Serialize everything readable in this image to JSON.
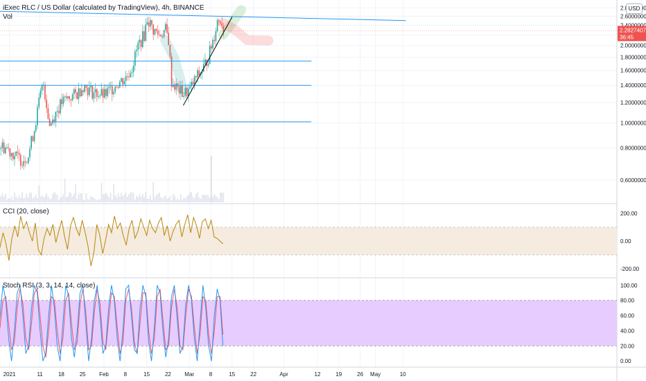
{
  "header": {
    "title": "iExec RLC / US Dollar (calculated by TradingView), 4h, BINANCE",
    "vol_label": "Vol",
    "currency": "USD"
  },
  "price_tag": {
    "value": "2.28274075",
    "countdown": "36:45",
    "color": "#ef5350"
  },
  "colors": {
    "up": "#26a69a",
    "down": "#ef5350",
    "blue_line": "#2196f3",
    "cci_line": "#b8860b",
    "cci_band": "#f5ecdf",
    "stoch_k": "#2196f3",
    "stoch_d": "#f7525f",
    "stoch_band": "#e6ccff"
  },
  "chart_data": [
    {
      "type": "candlestick",
      "title": "iExec RLC / US Dollar (calculated by TradingView), 4h, BINANCE",
      "y_scale": "log",
      "ylim": [
        0.52,
        2.86
      ],
      "y_ticks": [
        "2.80000000",
        "2.60000000",
        "2.40000000",
        "2.20000000",
        "2.00000000",
        "1.80000000",
        "1.60000000",
        "1.40000000",
        "1.20000000",
        "1.00000000",
        "0.80000000",
        "0.60000000"
      ],
      "x_ticks": [
        "2021",
        "11",
        "18",
        "25",
        "Feb",
        "8",
        "15",
        "22",
        "Mar",
        "8",
        "15",
        "22",
        "Apr",
        "12",
        "19",
        "26",
        "May",
        "10"
      ],
      "close_path": [
        [
          "2020-12-28",
          0.82
        ],
        [
          "2020-12-31",
          0.8
        ],
        [
          "2021-01-03",
          0.74
        ],
        [
          "2021-01-05",
          0.72
        ],
        [
          "2021-01-07",
          0.75
        ],
        [
          "2021-01-09",
          0.95
        ],
        [
          "2021-01-11",
          1.3
        ],
        [
          "2021-01-12",
          1.42
        ],
        [
          "2021-01-14",
          0.98
        ],
        [
          "2021-01-16",
          1.1
        ],
        [
          "2021-01-18",
          1.2
        ],
        [
          "2021-01-20",
          1.25
        ],
        [
          "2021-01-23",
          1.3
        ],
        [
          "2021-01-25",
          1.4
        ],
        [
          "2021-01-28",
          1.32
        ],
        [
          "2021-02-01",
          1.28
        ],
        [
          "2021-02-03",
          1.35
        ],
        [
          "2021-02-05",
          1.42
        ],
        [
          "2021-02-08",
          1.5
        ],
        [
          "2021-02-10",
          1.65
        ],
        [
          "2021-02-12",
          2.0
        ],
        [
          "2021-02-14",
          2.2
        ],
        [
          "2021-02-15",
          2.55
        ],
        [
          "2021-02-17",
          2.3
        ],
        [
          "2021-02-19",
          2.2
        ],
        [
          "2021-02-21",
          2.3
        ],
        [
          "2021-02-22",
          2.1
        ],
        [
          "2021-02-23",
          1.45
        ],
        [
          "2021-02-25",
          1.35
        ],
        [
          "2021-02-27",
          1.3
        ],
        [
          "2021-03-01",
          1.35
        ],
        [
          "2021-03-03",
          1.5
        ],
        [
          "2021-03-05",
          1.6
        ],
        [
          "2021-03-07",
          1.8
        ],
        [
          "2021-03-09",
          2.2
        ],
        [
          "2021-03-10",
          2.5
        ],
        [
          "2021-03-11",
          2.55
        ],
        [
          "2021-03-12",
          2.35
        ]
      ],
      "volume_spikes": [
        "2021-03-08"
      ],
      "drawings": {
        "resistance_line": [
          [
            "2020-12-28",
            2.72
          ],
          [
            "2021-05-11",
            2.5
          ]
        ],
        "trend_line": [
          [
            "2021-02-27",
            1.17
          ],
          [
            "2021-03-15",
            2.58
          ]
        ],
        "horizontal_lines": [
          {
            "value": 1.74,
            "from": "2020-12-28",
            "to": "2021-04-10"
          },
          {
            "value": 1.4,
            "from": "2020-12-28",
            "to": "2021-04-10"
          },
          {
            "value": 1.01,
            "from": "2020-12-28",
            "to": "2021-04-10"
          }
        ],
        "current_price_line": 2.2827,
        "green_arrow": [
          [
            "2021-03-12",
            2.2
          ],
          [
            "2021-03-15",
            2.45
          ],
          [
            "2021-03-18",
            2.75
          ]
        ],
        "red_arrow": [
          [
            "2021-03-12",
            2.45
          ],
          [
            "2021-03-16",
            2.3
          ],
          [
            "2021-03-20",
            2.1
          ],
          [
            "2021-03-27",
            2.09
          ]
        ],
        "green_projection_up": [
          [
            "2021-02-21",
            2.1
          ],
          [
            "2021-02-24",
            1.8
          ],
          [
            "2021-02-27",
            1.35
          ]
        ]
      }
    },
    {
      "type": "line",
      "title": "CCI (20, close)",
      "ylim": [
        -260,
        260
      ],
      "y_ticks": [
        "200.00",
        "0.00",
        "-200.00"
      ],
      "band": [
        -100,
        100
      ],
      "series": [
        {
          "name": "CCI (20, close)",
          "values": [
            -120,
            -40,
            60,
            -20,
            -140,
            20,
            110,
            30,
            180,
            90,
            140,
            60,
            0,
            130,
            -60,
            -100,
            20,
            90,
            40,
            120,
            -10,
            70,
            150,
            30,
            -60,
            110,
            170,
            90,
            40,
            150,
            60,
            -40,
            -180,
            -80,
            120,
            40,
            -90,
            10,
            120,
            60,
            180,
            90,
            130,
            40,
            -30,
            90,
            150,
            20,
            70,
            160,
            100,
            40,
            150,
            90,
            60,
            130,
            170,
            40,
            110,
            0,
            70,
            120,
            150,
            30,
            120,
            190,
            60,
            170,
            110,
            20,
            140,
            160,
            90,
            150,
            30,
            20,
            0,
            -20
          ]
        }
      ]
    },
    {
      "type": "line",
      "title": "Stoch RSI (3, 3, 14, 14, close)",
      "ylim": [
        -8,
        108
      ],
      "y_ticks": [
        "100.00",
        "80.00",
        "60.00",
        "40.00",
        "20.00",
        "0.00"
      ],
      "band": [
        20,
        80
      ],
      "series": [
        {
          "name": "K",
          "values": [
            20,
            60,
            100,
            80,
            30,
            0,
            40,
            90,
            100,
            60,
            10,
            20,
            70,
            100,
            90,
            40,
            0,
            10,
            60,
            100,
            70,
            20,
            0,
            50,
            100,
            85,
            30,
            5,
            40,
            90,
            100,
            50,
            0,
            30,
            80,
            100,
            60,
            10,
            20,
            70,
            100,
            80,
            30,
            0,
            40,
            95,
            100,
            60,
            15,
            10,
            70,
            100,
            85,
            25,
            0,
            45,
            100,
            90,
            40,
            5,
            30,
            85,
            100,
            55,
            10,
            20,
            75,
            100,
            80,
            30,
            0,
            50,
            100,
            70,
            20,
            0,
            60,
            95,
            80,
            20
          ]
        },
        {
          "name": "D",
          "values": [
            25,
            45,
            80,
            85,
            50,
            15,
            25,
            70,
            95,
            75,
            30,
            15,
            50,
            90,
            95,
            60,
            20,
            5,
            40,
            85,
            80,
            40,
            10,
            30,
            80,
            90,
            50,
            15,
            25,
            75,
            95,
            65,
            15,
            20,
            65,
            95,
            75,
            25,
            15,
            55,
            90,
            85,
            45,
            10,
            25,
            80,
            95,
            70,
            25,
            10,
            50,
            90,
            90,
            40,
            10,
            30,
            85,
            95,
            55,
            15,
            20,
            70,
            95,
            70,
            20,
            15,
            60,
            95,
            85,
            45,
            10,
            35,
            85,
            80,
            35,
            10,
            40,
            85,
            85,
            35
          ]
        }
      ]
    }
  ]
}
